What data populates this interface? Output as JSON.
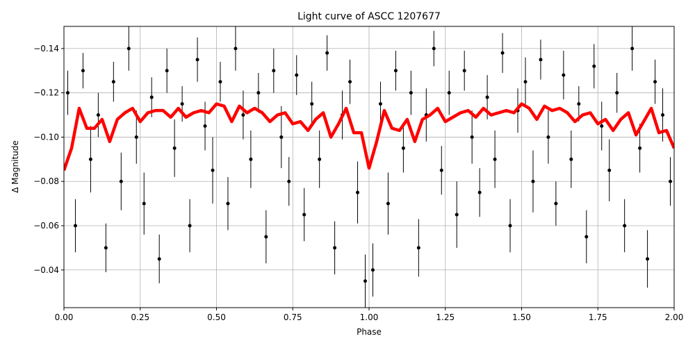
{
  "chart_data": {
    "type": "scatter",
    "title": "Light curve of ASCC 1207677",
    "x_label": "Phase",
    "y_label": "Δ Magnitude",
    "xlim": [
      0,
      2
    ],
    "ylim": [
      -0.023,
      -0.15
    ],
    "xticks": [
      {
        "value": 0,
        "label": "0.00"
      },
      {
        "value": 0.25,
        "label": "0.25"
      },
      {
        "value": 0.5,
        "label": "0.50"
      },
      {
        "value": 0.75,
        "label": "0.75"
      },
      {
        "value": 1,
        "label": "1.00"
      },
      {
        "value": 1.25,
        "label": "1.25"
      },
      {
        "value": 1.5,
        "label": "1.50"
      },
      {
        "value": 1.75,
        "label": "1.75"
      },
      {
        "value": 2,
        "label": "2.00"
      }
    ],
    "yticks": [
      {
        "value": -0.14,
        "label": "−0.14"
      },
      {
        "value": -0.12,
        "label": "−0.12"
      },
      {
        "value": -0.1,
        "label": "−0.10"
      },
      {
        "value": -0.08,
        "label": "−0.08"
      },
      {
        "value": -0.06,
        "label": "−0.06"
      },
      {
        "value": -0.04,
        "label": "−0.04"
      }
    ],
    "grid": true,
    "series": [
      {
        "type": "errorbar",
        "color": "#000000",
        "x": [
          0.0125,
          0.0375,
          0.0625,
          0.0875,
          0.1125,
          0.1375,
          0.1625,
          0.1875,
          0.2125,
          0.2375,
          0.2625,
          0.2875,
          0.3125,
          0.3375,
          0.3625,
          0.3875,
          0.4125,
          0.4375,
          0.4625,
          0.4875,
          0.5125,
          0.5375,
          0.5625,
          0.5875,
          0.6125,
          0.6375,
          0.6625,
          0.6875,
          0.7125,
          0.7375,
          0.7625,
          0.7875,
          0.8125,
          0.8375,
          0.8625,
          0.8875,
          0.9125,
          0.9375,
          0.9625,
          0.9875,
          1.0125,
          1.0375,
          1.0625,
          1.0875,
          1.1125,
          1.1375,
          1.1625,
          1.1875,
          1.2125,
          1.2375,
          1.2625,
          1.2875,
          1.3125,
          1.3375,
          1.3625,
          1.3875,
          1.4125,
          1.4375,
          1.4625,
          1.4875,
          1.5125,
          1.5375,
          1.5625,
          1.5875,
          1.6125,
          1.6375,
          1.6625,
          1.6875,
          1.7125,
          1.7375,
          1.7625,
          1.7875,
          1.8125,
          1.8375,
          1.8625,
          1.8875,
          1.9125,
          1.9375,
          1.9625,
          1.9875
        ],
        "values": [
          -0.12,
          -0.06,
          -0.13,
          -0.09,
          -0.11,
          -0.05,
          -0.125,
          -0.08,
          -0.14,
          -0.1,
          -0.07,
          -0.118,
          -0.045,
          -0.13,
          -0.095,
          -0.115,
          -0.06,
          -0.135,
          -0.105,
          -0.085,
          -0.125,
          -0.07,
          -0.14,
          -0.11,
          -0.09,
          -0.12,
          -0.055,
          -0.13,
          -0.1,
          -0.08,
          -0.128,
          -0.065,
          -0.115,
          -0.09,
          -0.138,
          -0.05,
          -0.11,
          -0.125,
          -0.075,
          -0.035,
          -0.04,
          -0.115,
          -0.07,
          -0.13,
          -0.095,
          -0.12,
          -0.05,
          -0.11,
          -0.14,
          -0.085,
          -0.12,
          -0.065,
          -0.13,
          -0.1,
          -0.075,
          -0.118,
          -0.09,
          -0.138,
          -0.06,
          -0.112,
          -0.125,
          -0.08,
          -0.135,
          -0.1,
          -0.07,
          -0.128,
          -0.09,
          -0.115,
          -0.055,
          -0.132,
          -0.105,
          -0.085,
          -0.12,
          -0.06,
          -0.14,
          -0.095,
          -0.045,
          -0.125,
          -0.11,
          -0.08
        ],
        "errors": [
          0.01,
          0.012,
          0.008,
          0.015,
          0.01,
          0.011,
          0.009,
          0.013,
          0.01,
          0.012,
          0.014,
          0.009,
          0.011,
          0.01,
          0.013,
          0.008,
          0.012,
          0.01,
          0.011,
          0.015,
          0.009,
          0.012,
          0.01,
          0.011,
          0.013,
          0.009,
          0.012,
          0.01,
          0.014,
          0.011,
          0.009,
          0.012,
          0.01,
          0.013,
          0.008,
          0.012,
          0.011,
          0.01,
          0.014,
          0.012,
          0.012,
          0.01,
          0.014,
          0.009,
          0.011,
          0.01,
          0.013,
          0.012,
          0.008,
          0.011,
          0.01,
          0.015,
          0.009,
          0.012,
          0.011,
          0.01,
          0.013,
          0.009,
          0.012,
          0.01,
          0.011,
          0.014,
          0.009,
          0.012,
          0.01,
          0.011,
          0.013,
          0.008,
          0.012,
          0.01,
          0.011,
          0.014,
          0.009,
          0.012,
          0.01,
          0.011,
          0.013,
          0.01,
          0.012,
          0.011
        ]
      },
      {
        "type": "line",
        "color": "#ff0000",
        "x": [
          0,
          0.025,
          0.05,
          0.075,
          0.1,
          0.125,
          0.15,
          0.175,
          0.2,
          0.225,
          0.25,
          0.275,
          0.3,
          0.325,
          0.35,
          0.375,
          0.4,
          0.425,
          0.45,
          0.475,
          0.5,
          0.525,
          0.55,
          0.575,
          0.6,
          0.625,
          0.65,
          0.675,
          0.7,
          0.725,
          0.75,
          0.775,
          0.8,
          0.825,
          0.85,
          0.875,
          0.9,
          0.925,
          0.95,
          0.975,
          1,
          1.025,
          1.05,
          1.075,
          1.1,
          1.125,
          1.15,
          1.175,
          1.2,
          1.225,
          1.25,
          1.275,
          1.3,
          1.325,
          1.35,
          1.375,
          1.4,
          1.425,
          1.45,
          1.475,
          1.5,
          1.525,
          1.55,
          1.575,
          1.6,
          1.625,
          1.65,
          1.675,
          1.7,
          1.725,
          1.75,
          1.775,
          1.8,
          1.825,
          1.85,
          1.875,
          1.9,
          1.925,
          1.95,
          1.975,
          2
        ],
        "values": [
          -0.085,
          -0.095,
          -0.113,
          -0.104,
          -0.104,
          -0.108,
          -0.098,
          -0.108,
          -0.111,
          -0.113,
          -0.107,
          -0.111,
          -0.112,
          -0.112,
          -0.109,
          -0.113,
          -0.109,
          -0.111,
          -0.112,
          -0.111,
          -0.115,
          -0.114,
          -0.107,
          -0.114,
          -0.111,
          -0.113,
          -0.111,
          -0.107,
          -0.11,
          -0.111,
          -0.106,
          -0.107,
          -0.103,
          -0.108,
          -0.111,
          -0.1,
          -0.106,
          -0.113,
          -0.102,
          -0.102,
          -0.086,
          -0.098,
          -0.112,
          -0.104,
          -0.103,
          -0.108,
          -0.098,
          -0.108,
          -0.11,
          -0.113,
          -0.107,
          -0.109,
          -0.111,
          -0.112,
          -0.109,
          -0.113,
          -0.11,
          -0.111,
          -0.112,
          -0.111,
          -0.115,
          -0.113,
          -0.108,
          -0.114,
          -0.112,
          -0.113,
          -0.111,
          -0.107,
          -0.11,
          -0.111,
          -0.106,
          -0.108,
          -0.103,
          -0.108,
          -0.111,
          -0.101,
          -0.107,
          -0.113,
          -0.102,
          -0.103,
          -0.095
        ]
      }
    ]
  }
}
